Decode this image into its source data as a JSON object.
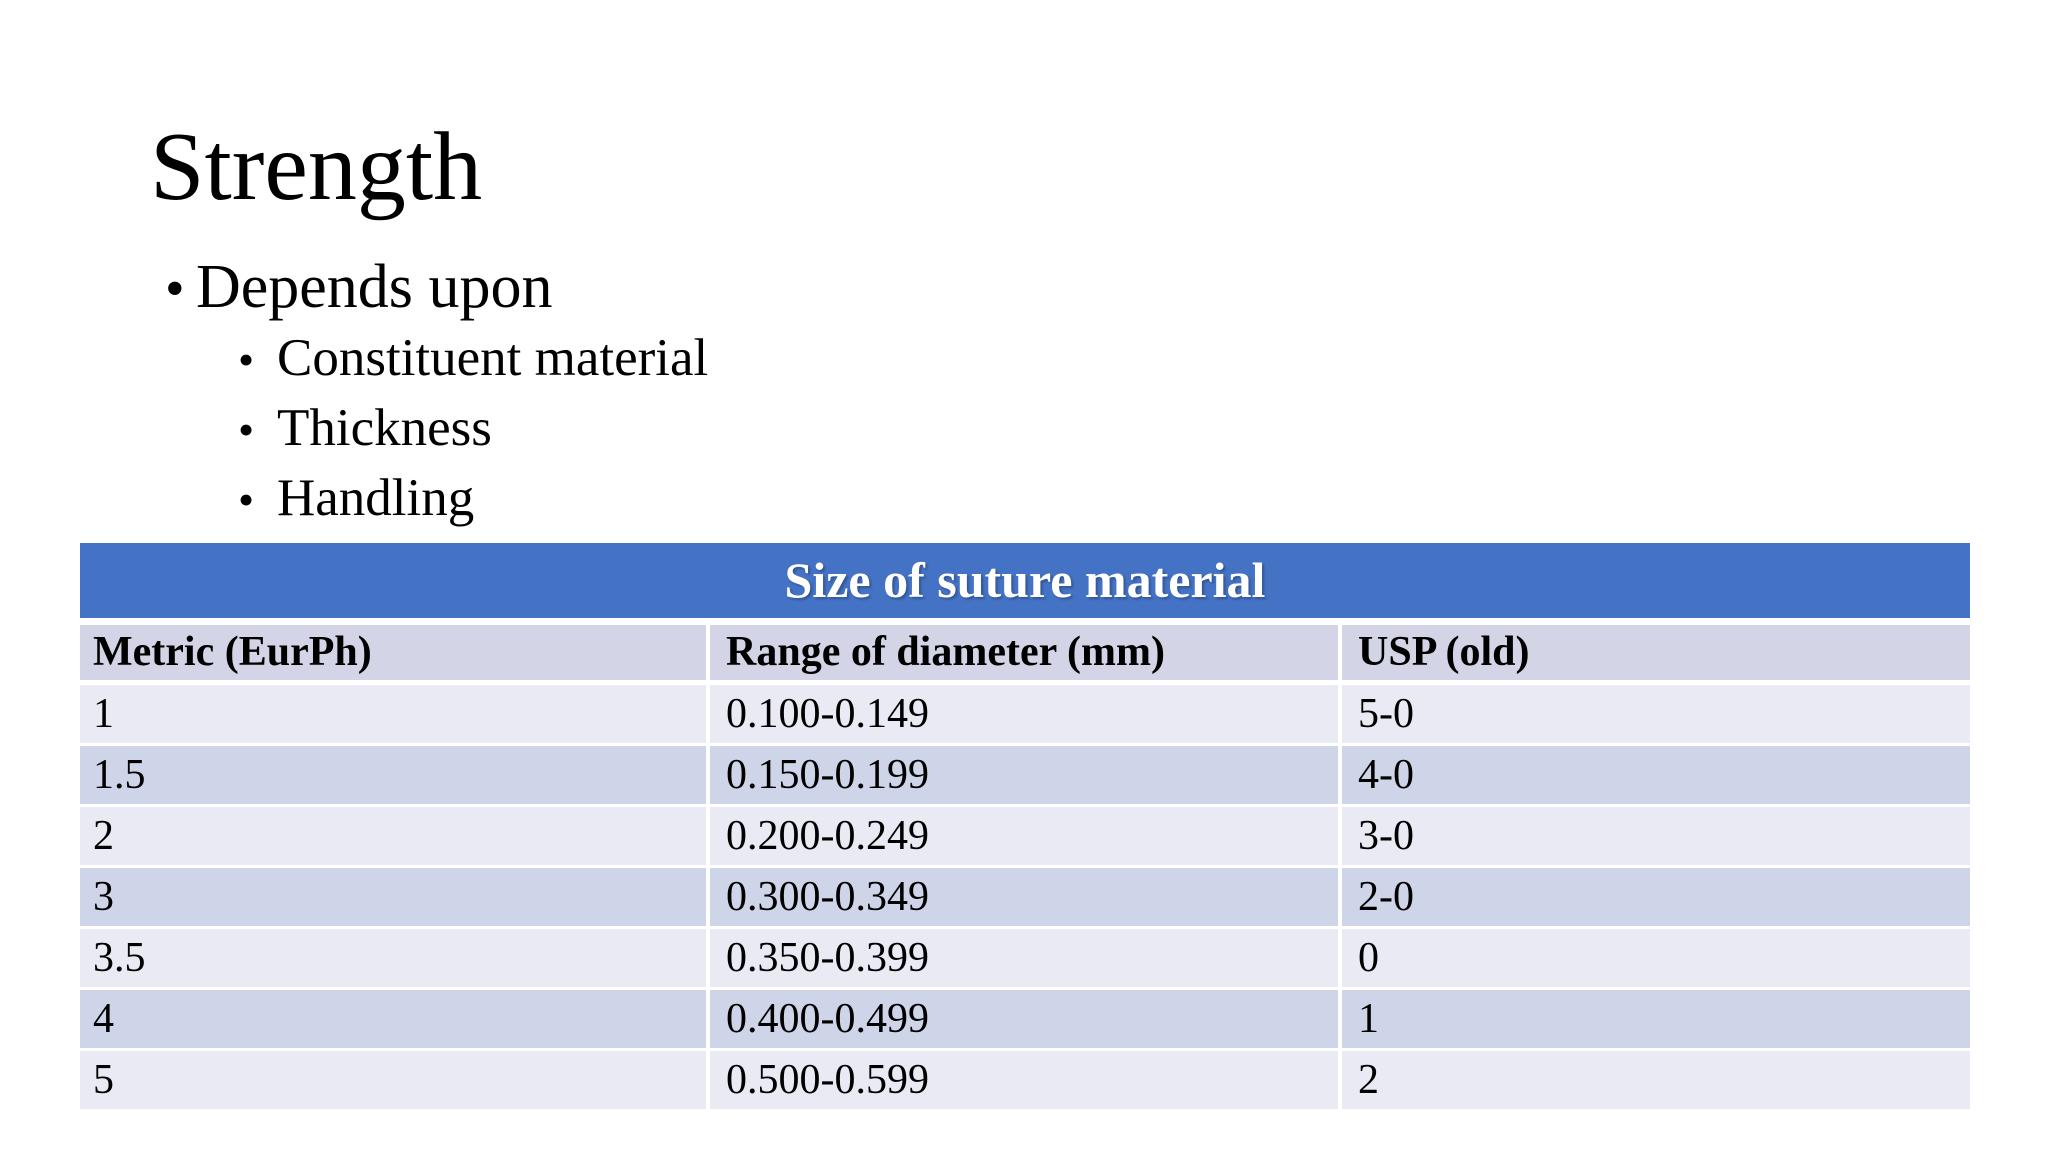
{
  "slide": {
    "title": "Strength",
    "bullets": [
      {
        "level": 1,
        "text": "Depends upon"
      },
      {
        "level": 2,
        "text": "Constituent material"
      },
      {
        "level": 2,
        "text": "Thickness"
      },
      {
        "level": 2,
        "text": "Handling"
      }
    ]
  },
  "table": {
    "title": "Size of suture material",
    "columns": [
      "Metric (EurPh)",
      "Range of diameter (mm)",
      "USP (old)"
    ],
    "rows": [
      [
        "1",
        "0.100-0.149",
        "5-0"
      ],
      [
        "1.5",
        "0.150-0.199",
        "4-0"
      ],
      [
        "2",
        "0.200-0.249",
        "3-0"
      ],
      [
        "3",
        "0.300-0.349",
        "2-0"
      ],
      [
        "3.5",
        "0.350-0.399",
        "0"
      ],
      [
        "4",
        "0.400-0.499",
        "1"
      ],
      [
        "5",
        "0.500-0.599",
        "2"
      ]
    ]
  },
  "colors": {
    "accent-blue": "#4472C4",
    "header-row-bg": "#D3D5E6",
    "band-light": "#E9EAF3",
    "band-dark": "#CFD5E8",
    "title-text": "#FFFFFF",
    "body-text": "#000000"
  }
}
